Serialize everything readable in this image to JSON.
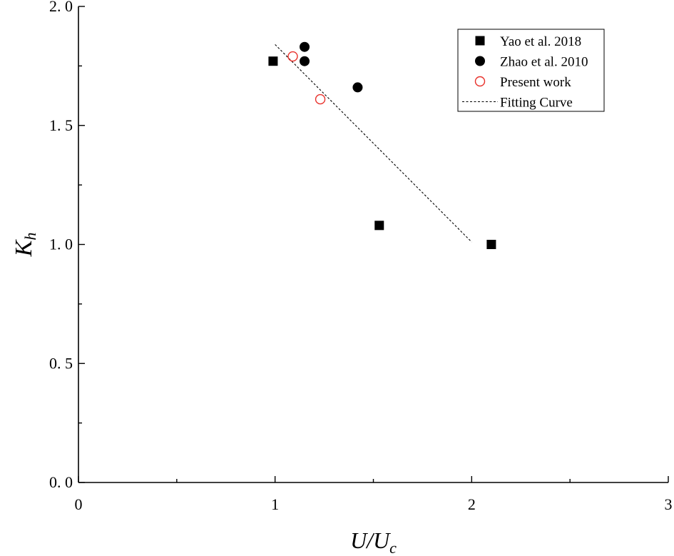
{
  "chart_data": {
    "type": "scatter",
    "title": "",
    "xlabel": "U/U",
    "xlabel_sub": "c",
    "ylabel": "K",
    "ylabel_sub": "h",
    "xlim": [
      0,
      3
    ],
    "ylim": [
      0.0,
      2.0
    ],
    "x_ticks": [
      0,
      1,
      2,
      3
    ],
    "x_tick_labels": [
      "0",
      "1",
      "2",
      "3"
    ],
    "y_ticks": [
      0.0,
      0.5,
      1.0,
      1.5,
      2.0
    ],
    "y_tick_labels": [
      "0. 0",
      "0. 5",
      "1. 0",
      "1. 5",
      "2. 0"
    ],
    "grid": false,
    "legend_position": "top-right",
    "series": [
      {
        "name": "Yao et al. 2018",
        "marker": "filled-square",
        "color": "#000000",
        "x": [
          0.99,
          1.53,
          2.1
        ],
        "y": [
          1.77,
          1.08,
          1.0
        ]
      },
      {
        "name": "Zhao et al. 2010",
        "marker": "filled-circle",
        "color": "#000000",
        "x": [
          1.15,
          1.15,
          1.42
        ],
        "y": [
          1.83,
          1.77,
          1.66
        ]
      },
      {
        "name": "Present work",
        "marker": "open-circle",
        "color": "#e8302a",
        "x": [
          1.09,
          1.23
        ],
        "y": [
          1.79,
          1.61
        ]
      },
      {
        "name": "Fitting Curve",
        "type": "line",
        "style": "dashed",
        "color": "#000000",
        "x": [
          1.0,
          2.0
        ],
        "y": [
          1.84,
          1.01
        ]
      }
    ]
  }
}
